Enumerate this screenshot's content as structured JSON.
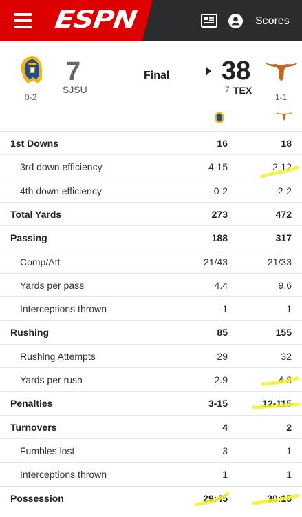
{
  "header": {
    "brand": "ESPN",
    "scores_label": "Scores",
    "brand_color": "#dd0000"
  },
  "game": {
    "status": "Final",
    "away": {
      "score": "7",
      "abbr": "SJSU",
      "record": "0-2"
    },
    "home": {
      "score": "38",
      "rank": "7",
      "abbr": "TEX",
      "record": "1-1"
    }
  },
  "stats": [
    {
      "label": "1st Downs",
      "away": "16",
      "home": "18",
      "level": "main"
    },
    {
      "label": "3rd down efficiency",
      "away": "4-15",
      "home": "2-12",
      "level": "sub"
    },
    {
      "label": "4th down efficiency",
      "away": "0-2",
      "home": "2-2",
      "level": "sub"
    },
    {
      "label": "Total Yards",
      "away": "273",
      "home": "472",
      "level": "main"
    },
    {
      "label": "Passing",
      "away": "188",
      "home": "317",
      "level": "main"
    },
    {
      "label": "Comp/Att",
      "away": "21/43",
      "home": "21/33",
      "level": "sub"
    },
    {
      "label": "Yards per pass",
      "away": "4.4",
      "home": "9.6",
      "level": "sub"
    },
    {
      "label": "Interceptions thrown",
      "away": "1",
      "home": "1",
      "level": "sub"
    },
    {
      "label": "Rushing",
      "away": "85",
      "home": "155",
      "level": "main"
    },
    {
      "label": "Rushing Attempts",
      "away": "29",
      "home": "32",
      "level": "sub"
    },
    {
      "label": "Yards per rush",
      "away": "2.9",
      "home": "4.8",
      "level": "sub"
    },
    {
      "label": "Penalties",
      "away": "3-15",
      "home": "12-115",
      "level": "main"
    },
    {
      "label": "Turnovers",
      "away": "4",
      "home": "2",
      "level": "main"
    },
    {
      "label": "Fumbles lost",
      "away": "3",
      "home": "1",
      "level": "sub"
    },
    {
      "label": "Interceptions thrown",
      "away": "1",
      "home": "1",
      "level": "sub"
    },
    {
      "label": "Possession",
      "away": "29:45",
      "home": "30:15",
      "level": "main"
    }
  ],
  "highlight_color": "#f6f02a"
}
